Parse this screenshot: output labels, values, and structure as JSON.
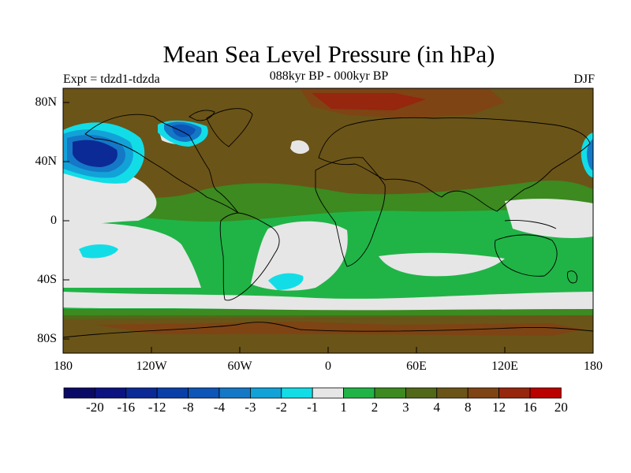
{
  "title": "Mean Sea Level Pressure (in hPa)",
  "subtitle": "088kyr BP - 000kyr BP",
  "left_label": "Expt = tdzd1-tdzda",
  "right_label": "DJF",
  "chart_data": {
    "type": "map",
    "variable": "Mean Sea Level Pressure anomaly",
    "units": "hPa",
    "season": "DJF",
    "lat_ticks": [
      "80N",
      "40N",
      "0",
      "40S",
      "80S"
    ],
    "lon_ticks": [
      "180",
      "120W",
      "60W",
      "0",
      "60E",
      "120E",
      "180"
    ],
    "colorbar": {
      "labels": [
        "-20",
        "-16",
        "-12",
        "-8",
        "-4",
        "-3",
        "-2",
        "-1",
        "1",
        "2",
        "3",
        "4",
        "8",
        "12",
        "16",
        "20"
      ],
      "colors": [
        "#0a0a66",
        "#0c127f",
        "#0b2a96",
        "#0a3fa8",
        "#0d55b6",
        "#1478c6",
        "#12a2d8",
        "#12dde6",
        "#e6e6e6",
        "#20b446",
        "#3c8a20",
        "#516818",
        "#6b5418",
        "#7e4414",
        "#96260e",
        "#bb0000"
      ]
    },
    "features": [
      {
        "name": "North Pacific low",
        "center": "45N 165W",
        "min_class": "-12 to -8"
      },
      {
        "name": "Hudson Bay low",
        "center": "62N 90W",
        "min_class": "-8 to -4"
      },
      {
        "name": "Arctic / Siberian high",
        "center": "85N 0",
        "max_class": "12 to 16"
      },
      {
        "name": "Tropical and subtropical oceans",
        "class": "-1 to 1"
      },
      {
        "name": "Southern Ocean ring",
        "center": "65S",
        "class": "4 to 12"
      }
    ]
  }
}
